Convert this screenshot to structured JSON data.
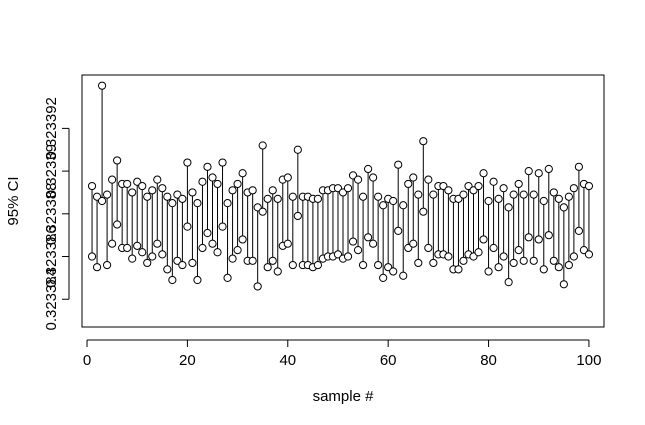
{
  "chart_data": {
    "type": "scatter",
    "title": "",
    "xlabel": "sample #",
    "ylabel": "95% CI",
    "xlim": [
      -1,
      103
    ],
    "ylim": [
      0.3233827,
      0.3233945
    ],
    "grid": false,
    "legend": "none",
    "x_ticks": [
      0,
      20,
      40,
      60,
      80,
      100
    ],
    "x_tick_labels": [
      "0",
      "20",
      "40",
      "60",
      "80",
      "100"
    ],
    "y_ticks": [
      0.323384,
      0.323386,
      0.323388,
      0.32339,
      0.323392
    ],
    "y_tick_labels": [
      "0.323384",
      "0.323386",
      "0.323388",
      "0.32339",
      "0.323392"
    ],
    "series": [
      {
        "role": "upper",
        "x": [
          1,
          2,
          3,
          4,
          5,
          6,
          7,
          8,
          9,
          10,
          11,
          12,
          13,
          14,
          15,
          16,
          17,
          18,
          19,
          20,
          21,
          22,
          23,
          24,
          25,
          26,
          27,
          28,
          29,
          30,
          31,
          32,
          33,
          34,
          35,
          36,
          37,
          38,
          39,
          40,
          41,
          42,
          43,
          44,
          45,
          46,
          47,
          48,
          49,
          50,
          51,
          52,
          53,
          54,
          55,
          56,
          57,
          58,
          59,
          60,
          61,
          62,
          63,
          64,
          65,
          66,
          67,
          68,
          69,
          70,
          71,
          72,
          73,
          74,
          75,
          76,
          77,
          78,
          79,
          80,
          81,
          82,
          83,
          84,
          85,
          86,
          87,
          88,
          89,
          90,
          91,
          92,
          93,
          94,
          95,
          96,
          97,
          98,
          99,
          100
        ],
        "values": [
          0.3233893,
          0.3233888,
          0.323394,
          0.3233889,
          0.3233896,
          0.3233905,
          0.3233894,
          0.3233894,
          0.323389,
          0.3233895,
          0.3233893,
          0.3233888,
          0.3233891,
          0.3233896,
          0.3233892,
          0.3233888,
          0.3233885,
          0.3233889,
          0.3233887,
          0.3233904,
          0.323389,
          0.3233885,
          0.3233895,
          0.3233902,
          0.3233897,
          0.3233894,
          0.3233904,
          0.3233885,
          0.3233891,
          0.3233894,
          0.3233899,
          0.323389,
          0.3233891,
          0.3233883,
          0.3233912,
          0.3233887,
          0.3233891,
          0.3233887,
          0.3233896,
          0.3233897,
          0.3233888,
          0.323391,
          0.3233888,
          0.3233888,
          0.3233887,
          0.3233887,
          0.3233891,
          0.3233891,
          0.3233892,
          0.3233892,
          0.323389,
          0.3233892,
          0.3233898,
          0.3233896,
          0.3233888,
          0.3233901,
          0.3233897,
          0.3233888,
          0.3233884,
          0.3233887,
          0.3233886,
          0.3233903,
          0.3233884,
          0.3233894,
          0.3233897,
          0.3233889,
          0.3233914,
          0.3233896,
          0.3233889,
          0.3233893,
          0.3233893,
          0.3233891,
          0.3233887,
          0.3233887,
          0.3233889,
          0.3233893,
          0.3233891,
          0.3233893,
          0.3233899,
          0.3233886,
          0.3233895,
          0.3233887,
          0.3233892,
          0.3233883,
          0.3233889,
          0.3233894,
          0.3233889,
          0.32339,
          0.3233889,
          0.3233899,
          0.3233886,
          0.3233901,
          0.323389,
          0.3233887,
          0.3233883,
          0.3233888,
          0.3233892,
          0.3233902,
          0.3233894,
          0.3233893
        ]
      },
      {
        "role": "lower",
        "x": [
          1,
          2,
          3,
          4,
          5,
          6,
          7,
          8,
          9,
          10,
          11,
          12,
          13,
          14,
          15,
          16,
          17,
          18,
          19,
          20,
          21,
          22,
          23,
          24,
          25,
          26,
          27,
          28,
          29,
          30,
          31,
          32,
          33,
          34,
          35,
          36,
          37,
          38,
          39,
          40,
          41,
          42,
          43,
          44,
          45,
          46,
          47,
          48,
          49,
          50,
          51,
          52,
          53,
          54,
          55,
          56,
          57,
          58,
          59,
          60,
          61,
          62,
          63,
          64,
          65,
          66,
          67,
          68,
          69,
          70,
          71,
          72,
          73,
          74,
          75,
          76,
          77,
          78,
          79,
          80,
          81,
          82,
          83,
          84,
          85,
          86,
          87,
          88,
          89,
          90,
          91,
          92,
          93,
          94,
          95,
          96,
          97,
          98,
          99,
          100
        ],
        "values": [
          0.323386,
          0.3233855,
          0.3233886,
          0.3233856,
          0.3233866,
          0.3233875,
          0.3233864,
          0.3233864,
          0.3233859,
          0.3233865,
          0.3233862,
          0.3233857,
          0.323386,
          0.3233866,
          0.3233861,
          0.3233854,
          0.3233849,
          0.3233858,
          0.3233856,
          0.3233874,
          0.3233857,
          0.3233849,
          0.3233864,
          0.3233871,
          0.3233866,
          0.3233862,
          0.3233874,
          0.323385,
          0.3233859,
          0.3233863,
          0.3233868,
          0.3233858,
          0.3233858,
          0.3233846,
          0.3233881,
          0.3233855,
          0.3233858,
          0.3233853,
          0.3233865,
          0.3233866,
          0.3233856,
          0.3233879,
          0.3233856,
          0.3233856,
          0.3233855,
          0.3233856,
          0.3233859,
          0.323386,
          0.323386,
          0.3233861,
          0.3233859,
          0.323386,
          0.3233867,
          0.3233863,
          0.3233856,
          0.3233869,
          0.3233866,
          0.3233856,
          0.323385,
          0.3233855,
          0.3233853,
          0.3233872,
          0.3233851,
          0.3233864,
          0.3233866,
          0.3233857,
          0.3233881,
          0.3233864,
          0.3233857,
          0.3233861,
          0.3233861,
          0.323386,
          0.3233854,
          0.3233854,
          0.3233858,
          0.3233861,
          0.323386,
          0.3233862,
          0.3233868,
          0.3233853,
          0.3233864,
          0.3233855,
          0.323386,
          0.3233848,
          0.3233857,
          0.3233863,
          0.3233858,
          0.3233869,
          0.3233858,
          0.3233868,
          0.3233854,
          0.323387,
          0.3233858,
          0.3233855,
          0.3233847,
          0.3233856,
          0.323386,
          0.3233872,
          0.3233863,
          0.3233861
        ]
      }
    ]
  }
}
